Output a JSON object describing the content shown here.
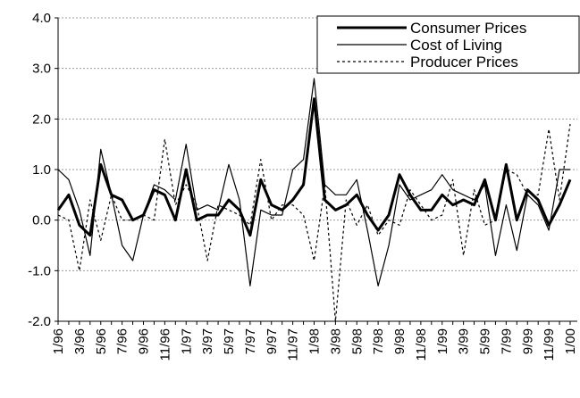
{
  "chart_data": {
    "type": "line",
    "categories": [
      "1/96",
      null,
      "3/96",
      null,
      "5/96",
      null,
      "7/96",
      null,
      "9/96",
      null,
      "11/96",
      null,
      "1/97",
      null,
      "3/97",
      null,
      "5/97",
      null,
      "7/97",
      null,
      "9/97",
      null,
      "11/97",
      null,
      "1/98",
      null,
      "3/98",
      null,
      "5/98",
      null,
      "7/98",
      null,
      "9/98",
      null,
      "11/98",
      null,
      "1/99",
      null,
      "3/99",
      null,
      "5/99",
      null,
      "7/99",
      null,
      "9/99",
      null,
      "11/99",
      null,
      "1/00"
    ],
    "series": [
      {
        "name": "Consumer Prices",
        "color": "#000000",
        "line_width": 3,
        "line_style": "solid",
        "values": [
          0.2,
          0.5,
          -0.1,
          -0.3,
          1.1,
          0.5,
          0.4,
          0.0,
          0.1,
          0.6,
          0.5,
          0.0,
          1.0,
          0.0,
          0.1,
          0.1,
          0.4,
          0.2,
          -0.3,
          0.8,
          0.3,
          0.2,
          0.4,
          0.7,
          2.4,
          0.4,
          0.2,
          0.3,
          0.5,
          0.1,
          -0.2,
          0.1,
          0.9,
          0.5,
          0.2,
          0.2,
          0.5,
          0.3,
          0.4,
          0.3,
          0.8,
          0.0,
          1.1,
          0.0,
          0.6,
          0.4,
          -0.1,
          0.3,
          0.8
        ]
      },
      {
        "name": "Cost of Living",
        "color": "#000000",
        "line_width": 1.2,
        "line_style": "solid",
        "values": [
          1.0,
          0.8,
          0.2,
          -0.7,
          1.4,
          0.5,
          -0.5,
          -0.8,
          0.1,
          0.7,
          0.6,
          0.4,
          1.5,
          0.2,
          0.3,
          0.2,
          1.1,
          0.4,
          -1.3,
          0.2,
          0.1,
          0.1,
          1.0,
          1.2,
          2.8,
          0.7,
          0.5,
          0.5,
          0.8,
          -0.2,
          -1.3,
          -0.5,
          0.7,
          0.4,
          0.5,
          0.6,
          0.9,
          0.6,
          0.5,
          0.4,
          0.7,
          -0.7,
          0.3,
          -0.6,
          0.5,
          0.3,
          -0.2,
          1.0,
          1.0
        ]
      },
      {
        "name": "Producer Prices",
        "color": "#000000",
        "line_width": 1.2,
        "line_style": "dotted",
        "values": [
          0.1,
          0.0,
          -1.0,
          0.4,
          -0.4,
          0.5,
          0.0,
          0.0,
          0.1,
          0.0,
          1.6,
          0.3,
          0.7,
          0.3,
          -0.8,
          0.3,
          0.2,
          0.1,
          -0.1,
          1.2,
          0.0,
          0.3,
          0.3,
          0.1,
          -0.8,
          0.7,
          -2.0,
          0.4,
          -0.1,
          0.3,
          -0.3,
          0.0,
          -0.1,
          0.6,
          0.3,
          0.0,
          0.1,
          0.8,
          -0.7,
          0.6,
          -0.1,
          0.0,
          1.0,
          0.9,
          0.5,
          0.5,
          1.8,
          0.4,
          1.9
        ]
      }
    ],
    "ylim": [
      -2,
      4
    ],
    "yticks": [
      {
        "value": -2,
        "label": "-2.0"
      },
      {
        "value": -1,
        "label": "-1.0"
      },
      {
        "value": 0,
        "label": "0.0"
      },
      {
        "value": 1,
        "label": "1.0"
      },
      {
        "value": 2,
        "label": "2.0"
      },
      {
        "value": 3,
        "label": "3.0"
      },
      {
        "value": 4,
        "label": "4.0"
      }
    ],
    "grid": true,
    "legend": "upper right"
  }
}
